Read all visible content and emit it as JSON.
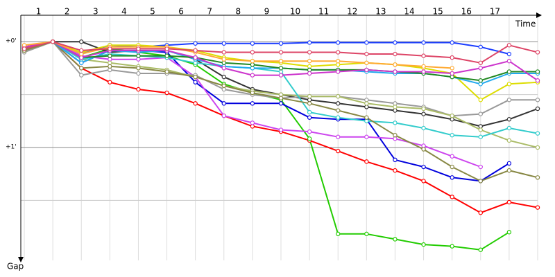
{
  "chart_data": {
    "type": "line",
    "x_axis_label": "Time",
    "y_axis_label": "Gap",
    "categories": [
      "1",
      "2",
      "3",
      "4",
      "5",
      "6",
      "7",
      "8",
      "9",
      "10",
      "11",
      "12",
      "13",
      "14",
      "15",
      "16",
      "17"
    ],
    "x": [
      0,
      1,
      2,
      3,
      4,
      5,
      6,
      7,
      8,
      9,
      10,
      11,
      12,
      13,
      14,
      15,
      16,
      17,
      18
    ],
    "xlim": [
      0,
      18
    ],
    "ylim": [
      -15,
      124
    ],
    "yticks": [
      {
        "value": 0,
        "label": "+0'"
      },
      {
        "value": 60,
        "label": "+1'"
      }
    ],
    "ygrid_minor": [
      30,
      90
    ],
    "inverted_y": true,
    "series": [
      {
        "color": "#ff0000",
        "values": [
          4,
          0,
          15,
          23,
          27,
          29,
          35,
          42,
          48,
          51,
          56,
          62,
          68,
          73,
          79,
          88,
          97,
          91,
          94
        ]
      },
      {
        "color": "#22cc00",
        "values": [
          5,
          0,
          9,
          4,
          6,
          8,
          13,
          24,
          29,
          33,
          55,
          109,
          109,
          112,
          115,
          116,
          118,
          108,
          null
        ]
      },
      {
        "color": "#0000dd",
        "values": [
          5,
          0,
          12,
          5,
          5,
          6,
          23,
          35,
          35,
          35,
          43,
          44,
          44,
          67,
          71,
          77,
          79,
          69,
          null
        ]
      },
      {
        "color": "#1a3cff",
        "values": [
          3,
          0,
          7,
          2,
          3,
          2,
          1,
          1,
          1,
          1,
          0.5,
          0.5,
          0.5,
          0.5,
          0.5,
          0.5,
          3,
          7,
          null
        ]
      },
      {
        "color": "#333333",
        "values": [
          4,
          0,
          0,
          6,
          5,
          5,
          10,
          20,
          27,
          30,
          33,
          35,
          37,
          39,
          41,
          44,
          48,
          44,
          38
        ]
      },
      {
        "color": "#cc44ee",
        "values": [
          3,
          0,
          8,
          10,
          10,
          9,
          20,
          42,
          46,
          50,
          51,
          54,
          54,
          55,
          59,
          65,
          71,
          null,
          null
        ]
      },
      {
        "color": "#999999",
        "values": [
          6,
          0,
          19,
          16,
          18,
          18,
          19,
          27,
          30,
          32,
          31,
          31,
          33,
          35,
          37,
          42,
          41,
          33,
          33
        ]
      },
      {
        "color": "#aabb66",
        "values": [
          5,
          0,
          10,
          12,
          14,
          16,
          20,
          25,
          28,
          30,
          31,
          31,
          35,
          37,
          38,
          42,
          50,
          56,
          60
        ]
      },
      {
        "color": "#33cccc",
        "values": [
          4,
          0,
          10,
          7,
          8,
          9,
          12,
          14,
          15,
          17,
          40,
          43,
          45,
          46,
          49,
          53,
          54,
          49,
          52
        ]
      },
      {
        "color": "#888844",
        "values": [
          5,
          0,
          15,
          14,
          15,
          17,
          20,
          25,
          29,
          32,
          35,
          39,
          43,
          53,
          61,
          71,
          79,
          73,
          77
        ]
      },
      {
        "color": "#dddd00",
        "values": [
          3,
          0,
          6,
          2,
          2,
          3,
          5,
          9,
          11,
          12,
          14,
          13,
          12,
          13,
          15,
          18,
          33,
          24,
          23
        ]
      },
      {
        "color": "#22aaee",
        "values": [
          4,
          0,
          12,
          5,
          6,
          5,
          10,
          14,
          15,
          15,
          16,
          16,
          17,
          18,
          18,
          20,
          24,
          18,
          18
        ]
      },
      {
        "color": "#228822",
        "values": [
          4,
          0,
          9,
          8,
          8,
          8,
          9,
          12,
          13,
          15,
          16,
          16,
          16,
          17,
          18,
          20,
          22,
          17,
          17
        ]
      },
      {
        "color": "#cc33cc",
        "values": [
          3,
          0,
          9,
          5,
          5,
          5,
          9,
          15,
          19,
          19,
          18,
          17,
          16,
          17,
          17,
          18,
          15,
          11,
          22
        ]
      },
      {
        "color": "#ffaa33",
        "values": [
          2,
          0,
          7,
          3,
          3,
          3,
          6,
          10,
          11,
          11,
          11,
          11,
          12,
          13,
          14,
          15,
          null,
          null,
          null
        ]
      },
      {
        "color": "#dd4466",
        "values": [
          4,
          0,
          5,
          4,
          4,
          4,
          5,
          6,
          6,
          6,
          6,
          6,
          7,
          7,
          8,
          9,
          12,
          2,
          6
        ]
      }
    ]
  }
}
